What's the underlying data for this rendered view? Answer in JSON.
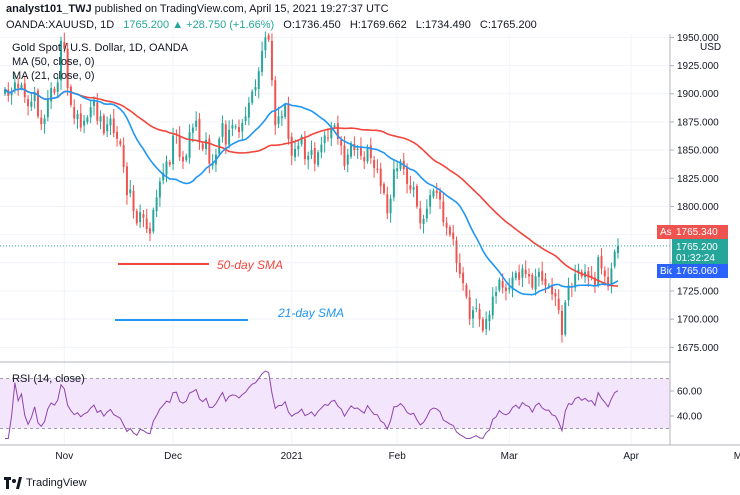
{
  "header": {
    "author": "analyst101_TWJ",
    "published_text": "published on TradingView.com, April 15, 2021 19:27:37 UTC",
    "symbol": "OANDA:XAUUSD, 1D",
    "change": "1765.200 ▲ +28.750 (+1.66%)",
    "open": "O:1736.450",
    "high": "H:1769.662",
    "low": "L:1734.490",
    "close": "C:1765.200"
  },
  "legend": {
    "title": "Gold Spot / U.S. Dollar, 1D, OANDA",
    "ma50": "MA (50, close, 0)",
    "ma21": "MA (21, close, 0)"
  },
  "annotations": {
    "sma50": "50-day SMA",
    "sma21": "21-day SMA"
  },
  "price_axis": {
    "unit": "USD",
    "ticks": [
      "1950.000",
      "1925.000",
      "1900.000",
      "1875.000",
      "1850.000",
      "1825.000",
      "1800.000",
      "1775.000",
      "1750.000",
      "1725.000",
      "1700.000",
      "1675.000"
    ],
    "ask_label": "Ask",
    "ask_value": "1765.340",
    "last_value": "1765.200",
    "countdown": "01:32:24",
    "bid_label": "Bid",
    "bid_value": "1765.060"
  },
  "time_axis": [
    "Nov",
    "Dec",
    "2021",
    "Feb",
    "Mar",
    "Apr",
    "May"
  ],
  "rsi": {
    "title": "RSI (14, close)",
    "ticks": [
      "60.00",
      "40.00"
    ]
  },
  "footer": {
    "brand": "TradingView"
  },
  "colors": {
    "up": "#26a69a",
    "down": "#ef5350",
    "ma50": "#f0463c",
    "ma21": "#2196f3",
    "rsi_line": "#8e44ad",
    "rsi_fill": "#f3e5fc",
    "ask": "#ef5350",
    "bid": "#2962ff",
    "last": "#26a69a"
  },
  "chart_data": {
    "type": "candlestick",
    "title": "Gold Spot / U.S. Dollar, 1D, OANDA",
    "y_range": [
      1662,
      1953
    ],
    "rsi_range": [
      20,
      80
    ],
    "months": [
      {
        "label": "Nov",
        "bar": 18
      },
      {
        "label": "Dec",
        "bar": 51
      },
      {
        "label": "2021",
        "bar": 87
      },
      {
        "label": "Feb",
        "bar": 119
      },
      {
        "label": "Mar",
        "bar": 153
      },
      {
        "label": "Apr",
        "bar": 190
      },
      {
        "label": "May",
        "bar": 224
      }
    ],
    "close": [
      1904,
      1898,
      1902,
      1910,
      1905,
      1908,
      1897,
      1889,
      1893,
      1901,
      1880,
      1873,
      1878,
      1895,
      1905,
      1901,
      1910,
      1947,
      1940,
      1905,
      1890,
      1878,
      1882,
      1870,
      1876,
      1879,
      1888,
      1894,
      1876,
      1880,
      1865,
      1873,
      1878,
      1865,
      1860,
      1855,
      1835,
      1810,
      1815,
      1796,
      1785,
      1795,
      1790,
      1780,
      1776,
      1797,
      1808,
      1822,
      1830,
      1840,
      1837,
      1863,
      1864,
      1844,
      1840,
      1845,
      1866,
      1870,
      1876,
      1857,
      1851,
      1859,
      1838,
      1838,
      1846,
      1860,
      1874,
      1855,
      1868,
      1872,
      1871,
      1866,
      1874,
      1880,
      1892,
      1902,
      1906,
      1920,
      1938,
      1950,
      1948,
      1912,
      1872,
      1880,
      1880,
      1890,
      1860,
      1845,
      1851,
      1854,
      1862,
      1842,
      1845,
      1850,
      1838,
      1848,
      1855,
      1863,
      1861,
      1870,
      1872,
      1860,
      1854,
      1836,
      1846,
      1856,
      1850,
      1851,
      1845,
      1840,
      1853,
      1843,
      1834,
      1833,
      1818,
      1812,
      1794,
      1807,
      1833,
      1834,
      1840,
      1833,
      1820,
      1815,
      1817,
      1800,
      1785,
      1789,
      1798,
      1810,
      1814,
      1812,
      1806,
      1786,
      1781,
      1775,
      1771,
      1750,
      1740,
      1732,
      1720,
      1700,
      1708,
      1710,
      1700,
      1690,
      1700,
      1704,
      1720,
      1724,
      1735,
      1728,
      1725,
      1728,
      1737,
      1741,
      1735,
      1745,
      1740,
      1738,
      1728,
      1738,
      1742,
      1734,
      1730,
      1730,
      1722,
      1720,
      1708,
      1686,
      1715,
      1730,
      1728,
      1740,
      1744,
      1738,
      1742,
      1737,
      1738,
      1730,
      1755,
      1745,
      1738,
      1729,
      1745,
      1760,
      1765
    ]
  }
}
